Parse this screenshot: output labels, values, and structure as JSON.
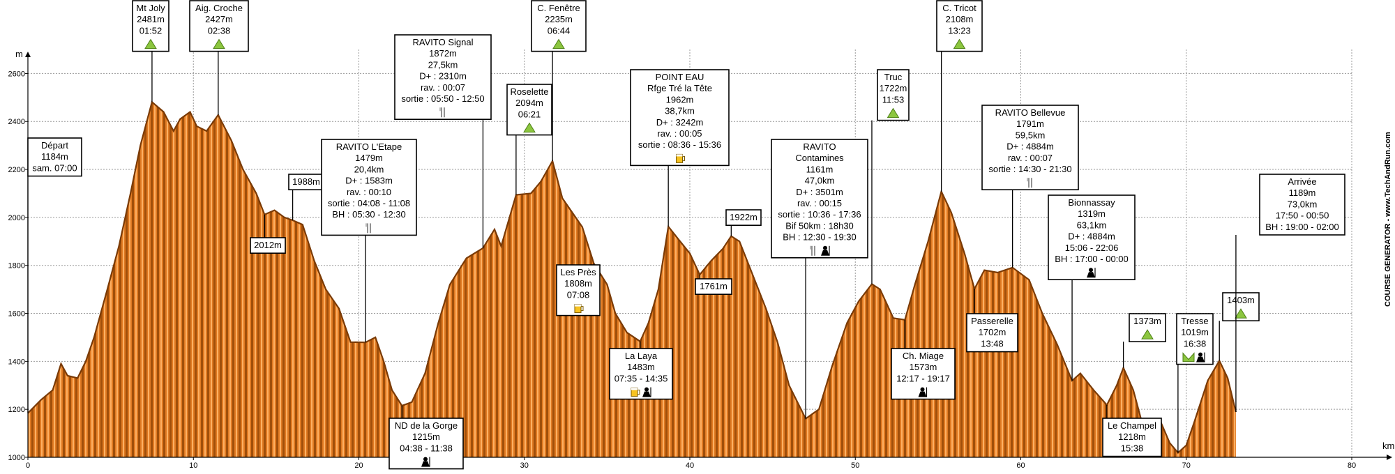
{
  "chart_data": {
    "type": "area",
    "x_unit": "km",
    "y_unit": "m",
    "xlim": [
      0,
      80
    ],
    "ylim": [
      1000,
      2700
    ],
    "x_ticks": [
      0,
      10,
      20,
      30,
      40,
      50,
      60,
      70,
      80
    ],
    "y_ticks": [
      1000,
      1200,
      1400,
      1600,
      1800,
      2000,
      2200,
      2400,
      2600
    ],
    "grid": true,
    "side_label": "COURSE GENERATOR - www.TechAndRun.com",
    "colors": {
      "fill_dark": "#a04f0a",
      "fill_light": "#ffa24a",
      "outline": "#7a3a05"
    },
    "profile": [
      [
        0,
        1184
      ],
      [
        0.8,
        1240
      ],
      [
        1.5,
        1280
      ],
      [
        2,
        1390
      ],
      [
        2.4,
        1340
      ],
      [
        3,
        1330
      ],
      [
        3.5,
        1400
      ],
      [
        4,
        1500
      ],
      [
        4.8,
        1700
      ],
      [
        5.5,
        1880
      ],
      [
        6.2,
        2100
      ],
      [
        6.8,
        2300
      ],
      [
        7.5,
        2481
      ],
      [
        8.2,
        2440
      ],
      [
        8.8,
        2360
      ],
      [
        9.2,
        2410
      ],
      [
        9.8,
        2440
      ],
      [
        10.2,
        2380
      ],
      [
        10.8,
        2360
      ],
      [
        11.5,
        2427
      ],
      [
        12.3,
        2320
      ],
      [
        13,
        2200
      ],
      [
        13.8,
        2100
      ],
      [
        14.3,
        2012
      ],
      [
        14.9,
        2030
      ],
      [
        15.5,
        2000
      ],
      [
        16,
        1988
      ],
      [
        16.6,
        1970
      ],
      [
        17.3,
        1820
      ],
      [
        18,
        1700
      ],
      [
        18.8,
        1620
      ],
      [
        19.5,
        1480
      ],
      [
        20.4,
        1479
      ],
      [
        21,
        1500
      ],
      [
        21.5,
        1400
      ],
      [
        22,
        1280
      ],
      [
        22.6,
        1215
      ],
      [
        23.2,
        1230
      ],
      [
        24,
        1350
      ],
      [
        24.8,
        1560
      ],
      [
        25.5,
        1720
      ],
      [
        26.5,
        1830
      ],
      [
        27.5,
        1872
      ],
      [
        28.2,
        1950
      ],
      [
        28.6,
        1880
      ],
      [
        29.5,
        2094
      ],
      [
        30.4,
        2100
      ],
      [
        31,
        2150
      ],
      [
        31.7,
        2235
      ],
      [
        32.3,
        2080
      ],
      [
        33.5,
        1960
      ],
      [
        34.2,
        1808
      ],
      [
        35,
        1720
      ],
      [
        35.5,
        1600
      ],
      [
        36.2,
        1520
      ],
      [
        37,
        1483
      ],
      [
        37.5,
        1560
      ],
      [
        38.1,
        1700
      ],
      [
        38.7,
        1962
      ],
      [
        39.3,
        1910
      ],
      [
        40,
        1850
      ],
      [
        40.6,
        1761
      ],
      [
        41.3,
        1820
      ],
      [
        42,
        1870
      ],
      [
        42.5,
        1922
      ],
      [
        43,
        1900
      ],
      [
        43.8,
        1760
      ],
      [
        44.6,
        1620
      ],
      [
        45.3,
        1480
      ],
      [
        46,
        1300
      ],
      [
        47,
        1161
      ],
      [
        47.8,
        1200
      ],
      [
        48.6,
        1380
      ],
      [
        49.5,
        1560
      ],
      [
        50.2,
        1650
      ],
      [
        51,
        1722
      ],
      [
        51.5,
        1700
      ],
      [
        52.3,
        1580
      ],
      [
        53,
        1573
      ],
      [
        53.6,
        1720
      ],
      [
        54.4,
        1900
      ],
      [
        55.2,
        2108
      ],
      [
        55.8,
        2020
      ],
      [
        56.6,
        1850
      ],
      [
        57.2,
        1702
      ],
      [
        57.8,
        1780
      ],
      [
        58.6,
        1770
      ],
      [
        59.5,
        1791
      ],
      [
        60.5,
        1740
      ],
      [
        61.3,
        1600
      ],
      [
        62.2,
        1470
      ],
      [
        63.1,
        1319
      ],
      [
        63.6,
        1350
      ],
      [
        64.4,
        1280
      ],
      [
        65.2,
        1218
      ],
      [
        65.8,
        1300
      ],
      [
        66.2,
        1373
      ],
      [
        66.8,
        1280
      ],
      [
        67.5,
        1100
      ],
      [
        68,
        1080
      ],
      [
        68.5,
        1140
      ],
      [
        69,
        1060
      ],
      [
        69.5,
        1019
      ],
      [
        70,
        1050
      ],
      [
        70.5,
        1150
      ],
      [
        71.3,
        1320
      ],
      [
        72,
        1403
      ],
      [
        72.5,
        1330
      ],
      [
        73,
        1189
      ]
    ],
    "waypoints": [
      {
        "lines": [
          "Départ",
          "1184m",
          "sam. 07:00"
        ],
        "km": 0,
        "elev": 1184
      },
      {
        "lines": [
          "Mt Joly",
          "2481m",
          "01:52"
        ],
        "km": 7.5,
        "elev": 2481,
        "icons": [
          "summit"
        ]
      },
      {
        "lines": [
          "Aig. Croche",
          "2427m",
          "02:38"
        ],
        "km": 11.5,
        "elev": 2427,
        "icons": [
          "summit"
        ]
      },
      {
        "lines": [
          "1988m"
        ],
        "km": 16,
        "elev": 1988
      },
      {
        "lines": [
          "2012m"
        ],
        "km": 14.3,
        "elev": 2012
      },
      {
        "lines": [
          "RAVITO L'Etape",
          "1479m",
          "20,4km",
          "D+ : 1583m",
          "rav. : 00:10",
          "sortie : 04:08 - 11:08",
          "BH : 05:30 - 12:30"
        ],
        "km": 20.4,
        "elev": 1479,
        "icons": [
          "food"
        ]
      },
      {
        "lines": [
          "ND de la Gorge",
          "1215m",
          "04:38 - 11:38"
        ],
        "km": 22.6,
        "elev": 1215,
        "icons": [
          "assist"
        ]
      },
      {
        "lines": [
          "RAVITO Signal",
          "1872m",
          "27,5km",
          "D+ : 2310m",
          "rav. : 00:07",
          "sortie : 05:50 - 12:50"
        ],
        "km": 27.5,
        "elev": 1872,
        "icons": [
          "food"
        ]
      },
      {
        "lines": [
          "Roselette",
          "2094m",
          "06:21"
        ],
        "km": 29.5,
        "elev": 2094,
        "icons": [
          "summit"
        ]
      },
      {
        "lines": [
          "C. Fenêtre",
          "2235m",
          "06:44"
        ],
        "km": 31.7,
        "elev": 2235,
        "icons": [
          "summit"
        ]
      },
      {
        "lines": [
          "Les Près",
          "1808m",
          "07:08"
        ],
        "km": 34.2,
        "elev": 1808,
        "icons": [
          "drink"
        ]
      },
      {
        "lines": [
          "La Laya",
          "1483m",
          "07:35 - 14:35"
        ],
        "km": 37,
        "elev": 1483,
        "icons": [
          "drink",
          "assist"
        ]
      },
      {
        "lines": [
          "POINT EAU",
          "Rfge Tré la Tête",
          "1962m",
          "38,7km",
          "D+ : 3242m",
          "rav. : 00:05",
          "sortie : 08:36 - 15:36"
        ],
        "km": 38.7,
        "elev": 1962,
        "icons": [
          "drink"
        ]
      },
      {
        "lines": [
          "1761m"
        ],
        "km": 40.6,
        "elev": 1761
      },
      {
        "lines": [
          "1922m"
        ],
        "km": 42.5,
        "elev": 1922
      },
      {
        "lines": [
          "RAVITO",
          "Contamines",
          "1161m",
          "47,0km",
          "D+ : 3501m",
          "rav. : 00:15",
          "sortie : 10:36 - 17:36",
          "Bif 50km : 18h30",
          "BH : 12:30 - 19:30"
        ],
        "km": 47,
        "elev": 1161,
        "icons": [
          "food",
          "assist"
        ]
      },
      {
        "lines": [
          "Truc",
          "1722m",
          "11:53"
        ],
        "km": 51,
        "elev": 1722,
        "icons": [
          "summit"
        ]
      },
      {
        "lines": [
          "Ch. Miage",
          "1573m",
          "12:17 - 19:17"
        ],
        "km": 53,
        "elev": 1573,
        "icons": [
          "assist"
        ]
      },
      {
        "lines": [
          "C. Tricot",
          "2108m",
          "13:23"
        ],
        "km": 55.2,
        "elev": 2108,
        "icons": [
          "summit"
        ]
      },
      {
        "lines": [
          "Passerelle",
          "1702m",
          "13:48"
        ],
        "km": 57.2,
        "elev": 1702
      },
      {
        "lines": [
          "RAVITO Bellevue",
          "1791m",
          "59,5km",
          "D+ : 4884m",
          "rav. : 00:07",
          "sortie : 14:30 - 21:30"
        ],
        "km": 59.5,
        "elev": 1791,
        "icons": [
          "food"
        ]
      },
      {
        "lines": [
          "Bionnassay",
          "1319m",
          "63,1km",
          "D+ : 4884m",
          "15:06 - 22:06",
          "BH : 17:00 - 00:00"
        ],
        "km": 63.1,
        "elev": 1319,
        "icons": [
          "assist"
        ]
      },
      {
        "lines": [
          "Le Champel",
          "1218m",
          "15:38"
        ],
        "km": 65.2,
        "elev": 1218
      },
      {
        "lines": [
          "1373m"
        ],
        "km": 66.2,
        "elev": 1373,
        "icons": [
          "summit"
        ]
      },
      {
        "lines": [
          "Tresse",
          "1019m",
          "16:38"
        ],
        "km": 69.5,
        "elev": 1019,
        "icons": [
          "valley",
          "assist"
        ]
      },
      {
        "lines": [
          "1403m"
        ],
        "km": 72,
        "elev": 1403,
        "icons": [
          "summit"
        ]
      },
      {
        "lines": [
          "Arrivée",
          "1189m",
          "73,0km",
          "17:50 - 00:50",
          "BH : 19:00 - 02:00"
        ],
        "km": 73,
        "elev": 1189
      }
    ]
  }
}
